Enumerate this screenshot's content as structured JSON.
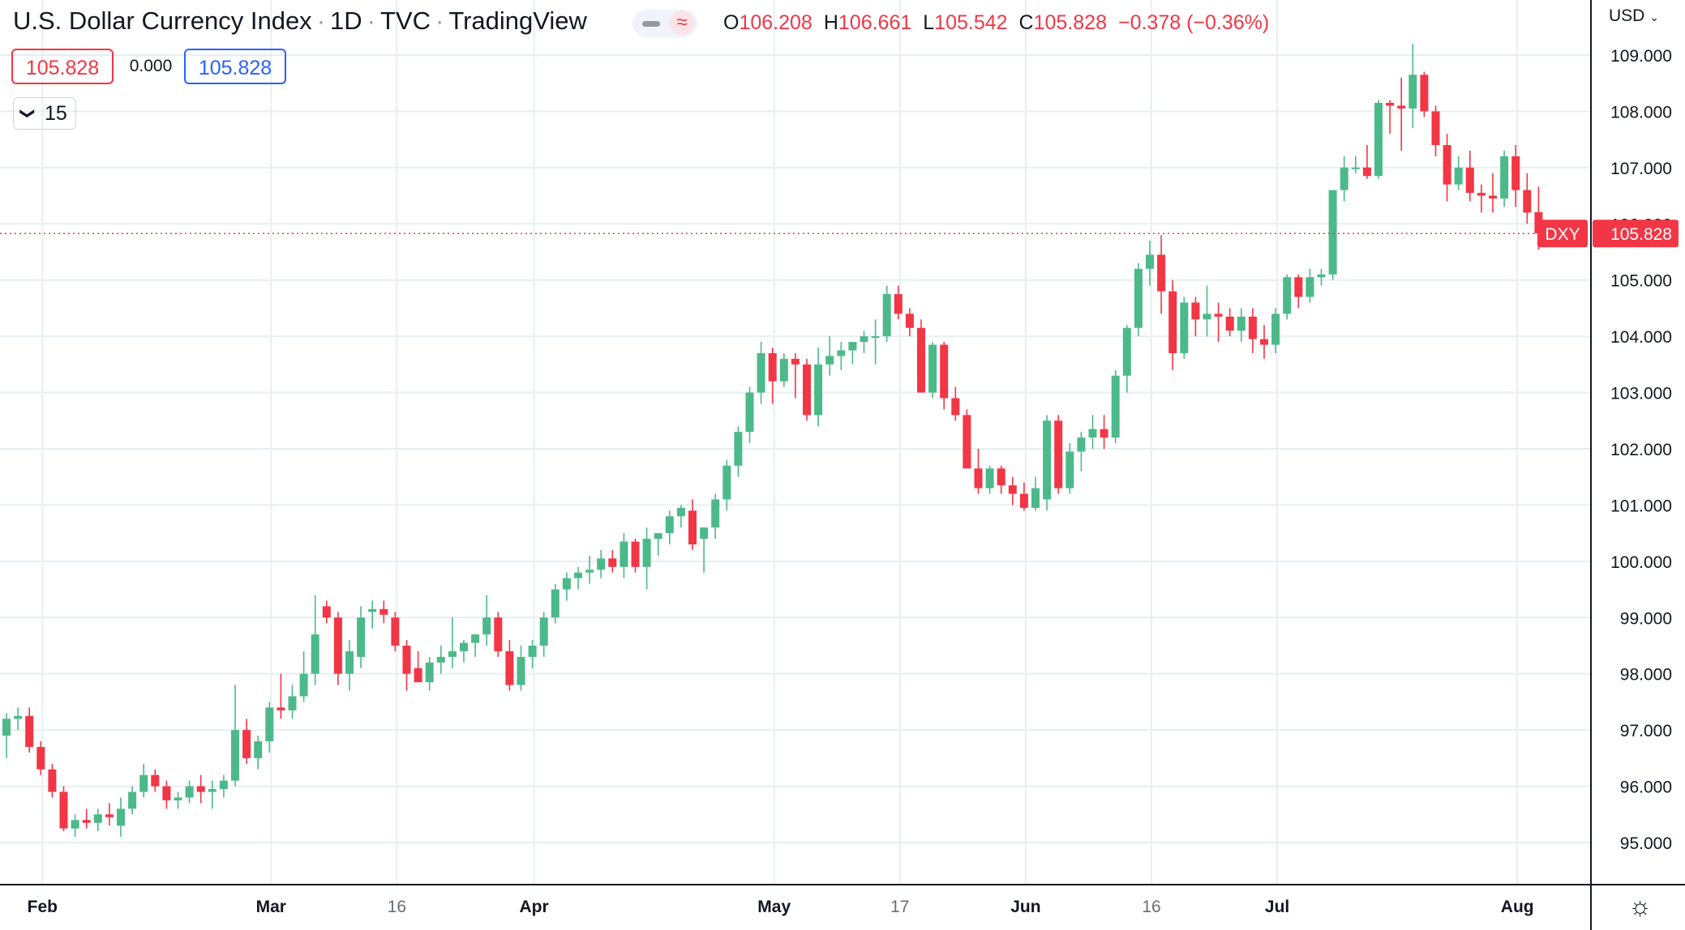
{
  "header": {
    "title": "U.S. Dollar Currency Index",
    "interval": "1D",
    "exchange": "TVC",
    "source": "TradingView",
    "ohlc": {
      "o_label": "O",
      "o": "106.208",
      "h_label": "H",
      "h": "106.661",
      "l_label": "L",
      "l": "105.542",
      "c_label": "C",
      "c": "105.828",
      "change": "−0.378 (−0.36%)"
    },
    "bid": "105.828",
    "spread": "0.000",
    "ask": "105.828",
    "indicators_count": "15",
    "currency": "USD"
  },
  "colors": {
    "up": "#26a69a",
    "up_fill": "#4cb98a",
    "down": "#f23645",
    "grid": "#e6eff3",
    "axis_text": "#131722",
    "price_label": "#f23645"
  },
  "chart_data": {
    "type": "candlestick",
    "title": "U.S. Dollar Currency Index",
    "symbol": "DXY",
    "last_price": 105.828,
    "price_label": "105.828",
    "ylim": [
      94.3,
      109.8
    ],
    "y_ticks": [
      "95.000",
      "96.000",
      "97.000",
      "98.000",
      "99.000",
      "100.000",
      "101.000",
      "102.000",
      "103.000",
      "104.000",
      "105.000",
      "106.000",
      "107.000",
      "108.000",
      "109.000"
    ],
    "x_labels": [
      {
        "bar": 3,
        "text": "Feb",
        "bold": true
      },
      {
        "bar": 23,
        "text": "Mar",
        "bold": true
      },
      {
        "bar": 34,
        "text": "16",
        "bold": false
      },
      {
        "bar": 46,
        "text": "Apr",
        "bold": true
      },
      {
        "bar": 67,
        "text": "May",
        "bold": true
      },
      {
        "bar": 78,
        "text": "17",
        "bold": false
      },
      {
        "bar": 89,
        "text": "Jun",
        "bold": true
      },
      {
        "bar": 100,
        "text": "16",
        "bold": false
      },
      {
        "bar": 111,
        "text": "Jul",
        "bold": true
      },
      {
        "bar": 132,
        "text": "Aug",
        "bold": true
      }
    ],
    "ohlc": [
      [
        96.9,
        97.3,
        96.5,
        97.2
      ],
      [
        97.2,
        97.4,
        97.0,
        97.25
      ],
      [
        97.25,
        97.4,
        96.6,
        96.7
      ],
      [
        96.7,
        96.8,
        96.2,
        96.3
      ],
      [
        96.3,
        96.4,
        95.8,
        95.9
      ],
      [
        95.9,
        96.0,
        95.2,
        95.25
      ],
      [
        95.25,
        95.5,
        95.1,
        95.4
      ],
      [
        95.4,
        95.6,
        95.25,
        95.35
      ],
      [
        95.35,
        95.6,
        95.2,
        95.5
      ],
      [
        95.5,
        95.7,
        95.3,
        95.45
      ],
      [
        95.3,
        95.8,
        95.1,
        95.6
      ],
      [
        95.6,
        96.0,
        95.5,
        95.9
      ],
      [
        95.9,
        96.4,
        95.8,
        96.2
      ],
      [
        96.2,
        96.3,
        95.9,
        96.0
      ],
      [
        96.0,
        96.1,
        95.6,
        95.75
      ],
      [
        95.75,
        95.9,
        95.6,
        95.8
      ],
      [
        95.8,
        96.1,
        95.7,
        96.0
      ],
      [
        96.0,
        96.2,
        95.7,
        95.9
      ],
      [
        95.9,
        96.1,
        95.6,
        95.95
      ],
      [
        95.95,
        96.2,
        95.8,
        96.1
      ],
      [
        96.1,
        97.8,
        96.0,
        97.0
      ],
      [
        97.0,
        97.2,
        96.4,
        96.5
      ],
      [
        96.5,
        96.9,
        96.3,
        96.8
      ],
      [
        96.8,
        97.5,
        96.6,
        97.4
      ],
      [
        97.4,
        98.0,
        97.2,
        97.35
      ],
      [
        97.35,
        97.8,
        97.2,
        97.6
      ],
      [
        97.6,
        98.4,
        97.5,
        98.0
      ],
      [
        98.0,
        99.4,
        97.8,
        98.7
      ],
      [
        99.2,
        99.3,
        98.9,
        99.0
      ],
      [
        99.0,
        99.1,
        97.8,
        98.0
      ],
      [
        98.0,
        98.6,
        97.7,
        98.4
      ],
      [
        98.3,
        99.2,
        98.1,
        99.0
      ],
      [
        99.1,
        99.3,
        98.8,
        99.15
      ],
      [
        99.15,
        99.3,
        98.9,
        99.05
      ],
      [
        99.0,
        99.1,
        98.4,
        98.5
      ],
      [
        98.5,
        98.6,
        97.7,
        98.0
      ],
      [
        98.1,
        98.4,
        97.9,
        97.85
      ],
      [
        97.85,
        98.3,
        97.7,
        98.2
      ],
      [
        98.2,
        98.5,
        98.0,
        98.3
      ],
      [
        98.3,
        99.0,
        98.1,
        98.4
      ],
      [
        98.4,
        98.6,
        98.2,
        98.55
      ],
      [
        98.55,
        98.7,
        98.3,
        98.7
      ],
      [
        98.7,
        99.4,
        98.5,
        99.0
      ],
      [
        99.0,
        99.1,
        98.3,
        98.4
      ],
      [
        98.4,
        98.6,
        97.7,
        97.8
      ],
      [
        97.8,
        98.5,
        97.7,
        98.3
      ],
      [
        98.3,
        98.6,
        98.1,
        98.5
      ],
      [
        98.5,
        99.1,
        98.3,
        99.0
      ],
      [
        99.0,
        99.6,
        98.9,
        99.5
      ],
      [
        99.5,
        99.8,
        99.3,
        99.7
      ],
      [
        99.7,
        99.9,
        99.5,
        99.8
      ],
      [
        99.8,
        100.1,
        99.6,
        99.85
      ],
      [
        99.85,
        100.2,
        99.7,
        100.05
      ],
      [
        100.05,
        100.2,
        99.8,
        99.9
      ],
      [
        99.9,
        100.5,
        99.7,
        100.35
      ],
      [
        100.35,
        100.4,
        99.8,
        99.9
      ],
      [
        99.9,
        100.6,
        99.5,
        100.4
      ],
      [
        100.4,
        100.5,
        100.1,
        100.5
      ],
      [
        100.5,
        100.9,
        100.3,
        100.8
      ],
      [
        100.8,
        101.0,
        100.6,
        100.95
      ],
      [
        100.9,
        101.1,
        100.2,
        100.3
      ],
      [
        100.4,
        100.6,
        99.8,
        100.6
      ],
      [
        100.6,
        101.2,
        100.4,
        101.1
      ],
      [
        101.1,
        101.8,
        100.9,
        101.7
      ],
      [
        101.7,
        102.4,
        101.5,
        102.3
      ],
      [
        102.3,
        103.1,
        102.1,
        103.0
      ],
      [
        103.0,
        103.9,
        102.8,
        103.7
      ],
      [
        103.7,
        103.8,
        102.8,
        103.2
      ],
      [
        103.2,
        103.7,
        103.1,
        103.6
      ],
      [
        103.6,
        103.7,
        102.9,
        103.5
      ],
      [
        103.5,
        103.6,
        102.5,
        102.6
      ],
      [
        102.6,
        103.8,
        102.4,
        103.5
      ],
      [
        103.5,
        104.0,
        103.3,
        103.65
      ],
      [
        103.65,
        103.9,
        103.4,
        103.75
      ],
      [
        103.75,
        103.9,
        103.5,
        103.9
      ],
      [
        103.9,
        104.1,
        103.7,
        104.0
      ],
      [
        104.0,
        104.3,
        103.5,
        104.0
      ],
      [
        104.0,
        104.9,
        103.9,
        104.75
      ],
      [
        104.75,
        104.9,
        104.3,
        104.4
      ],
      [
        104.4,
        104.5,
        104.0,
        104.15
      ],
      [
        104.15,
        104.3,
        103.0,
        103.0
      ],
      [
        103.0,
        103.9,
        102.9,
        103.85
      ],
      [
        103.85,
        103.9,
        102.7,
        102.9
      ],
      [
        102.9,
        103.1,
        102.5,
        102.6
      ],
      [
        102.6,
        102.7,
        101.7,
        101.65
      ],
      [
        101.65,
        102.0,
        101.2,
        101.3
      ],
      [
        101.3,
        101.7,
        101.2,
        101.65
      ],
      [
        101.65,
        101.7,
        101.2,
        101.35
      ],
      [
        101.35,
        101.5,
        101.0,
        101.2
      ],
      [
        101.2,
        101.4,
        100.9,
        100.95
      ],
      [
        100.95,
        101.5,
        100.9,
        101.3
      ],
      [
        101.1,
        102.6,
        100.9,
        102.5
      ],
      [
        102.5,
        102.6,
        101.2,
        101.3
      ],
      [
        101.3,
        102.1,
        101.2,
        101.95
      ],
      [
        101.95,
        102.3,
        101.6,
        102.2
      ],
      [
        102.2,
        102.6,
        102.0,
        102.35
      ],
      [
        102.35,
        102.6,
        102.0,
        102.2
      ],
      [
        102.2,
        103.4,
        102.1,
        103.3
      ],
      [
        103.3,
        104.2,
        103.0,
        104.15
      ],
      [
        104.15,
        105.3,
        104.0,
        105.2
      ],
      [
        105.2,
        105.7,
        104.9,
        105.45
      ],
      [
        105.45,
        105.8,
        104.4,
        104.8
      ],
      [
        104.8,
        105.0,
        103.4,
        103.7
      ],
      [
        103.7,
        104.7,
        103.6,
        104.6
      ],
      [
        104.6,
        104.7,
        104.0,
        104.3
      ],
      [
        104.3,
        104.9,
        104.0,
        104.4
      ],
      [
        104.4,
        104.6,
        103.9,
        104.35
      ],
      [
        104.35,
        104.5,
        104.0,
        104.1
      ],
      [
        104.1,
        104.5,
        103.9,
        104.35
      ],
      [
        104.35,
        104.5,
        103.7,
        103.95
      ],
      [
        103.95,
        104.2,
        103.6,
        103.85
      ],
      [
        103.85,
        104.5,
        103.7,
        104.4
      ],
      [
        104.4,
        105.1,
        104.3,
        105.05
      ],
      [
        105.05,
        105.1,
        104.5,
        104.7
      ],
      [
        104.7,
        105.2,
        104.6,
        105.05
      ],
      [
        105.05,
        105.2,
        104.9,
        105.1
      ],
      [
        105.1,
        106.6,
        105.0,
        106.6
      ],
      [
        106.6,
        107.2,
        106.4,
        107.0
      ],
      [
        107.0,
        107.2,
        106.9,
        107.0
      ],
      [
        107.0,
        107.4,
        106.8,
        106.85
      ],
      [
        106.85,
        108.2,
        106.8,
        108.15
      ],
      [
        108.15,
        108.2,
        107.6,
        108.1
      ],
      [
        108.1,
        108.6,
        107.3,
        108.05
      ],
      [
        108.05,
        109.2,
        107.7,
        108.65
      ],
      [
        108.65,
        108.7,
        107.9,
        108.0
      ],
      [
        108.0,
        108.1,
        107.2,
        107.4
      ],
      [
        107.4,
        107.6,
        106.4,
        106.7
      ],
      [
        106.7,
        107.2,
        106.6,
        107.0
      ],
      [
        107.0,
        107.3,
        106.4,
        106.55
      ],
      [
        106.55,
        106.7,
        106.2,
        106.5
      ],
      [
        106.5,
        106.9,
        106.2,
        106.45
      ],
      [
        106.45,
        107.3,
        106.3,
        107.2
      ],
      [
        107.2,
        107.4,
        106.3,
        106.6
      ],
      [
        106.6,
        106.9,
        106.0,
        106.2
      ],
      [
        106.208,
        106.661,
        105.542,
        105.828
      ]
    ]
  }
}
